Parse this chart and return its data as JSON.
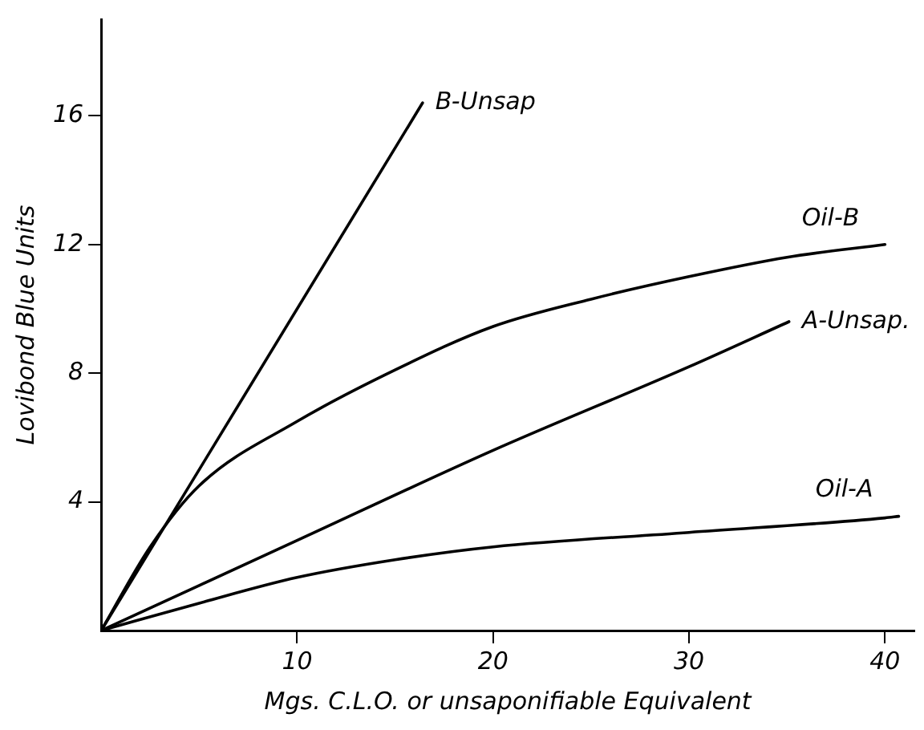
{
  "chart_data": {
    "type": "line",
    "xlabel": "Mgs. C.L.O. or unsaponifiable Equivalent",
    "ylabel": "Lovibond Blue Units",
    "xlim": [
      0,
      41.5
    ],
    "ylim": [
      0,
      19
    ],
    "xticks": [
      10,
      20,
      30,
      40
    ],
    "yticks": [
      4,
      8,
      12,
      16
    ],
    "grid": false,
    "legend": false,
    "marker": "none",
    "line_style": "solid",
    "series": [
      {
        "name": "B-Unsap",
        "color": "#000000",
        "x": [
          0,
          16.4
        ],
        "values": [
          0,
          16.4
        ]
      },
      {
        "name": "Oil-B",
        "color": "#000000",
        "x": [
          0,
          2.5,
          5,
          10,
          15,
          20,
          25,
          30,
          35,
          40
        ],
        "values": [
          0,
          2.6,
          4.5,
          6.5,
          8.1,
          9.45,
          10.3,
          11.0,
          11.6,
          12.0
        ]
      },
      {
        "name": "A-Unsap.",
        "color": "#000000",
        "x": [
          0,
          5,
          10,
          20,
          30,
          35.1
        ],
        "values": [
          0,
          1.4,
          2.8,
          5.6,
          8.2,
          9.6
        ]
      },
      {
        "name": "Oil-A",
        "color": "#000000",
        "x": [
          0,
          5,
          10,
          15,
          20,
          30,
          40,
          40.7
        ],
        "values": [
          0,
          0.85,
          1.65,
          2.2,
          2.6,
          3.05,
          3.5,
          3.55
        ]
      }
    ]
  }
}
